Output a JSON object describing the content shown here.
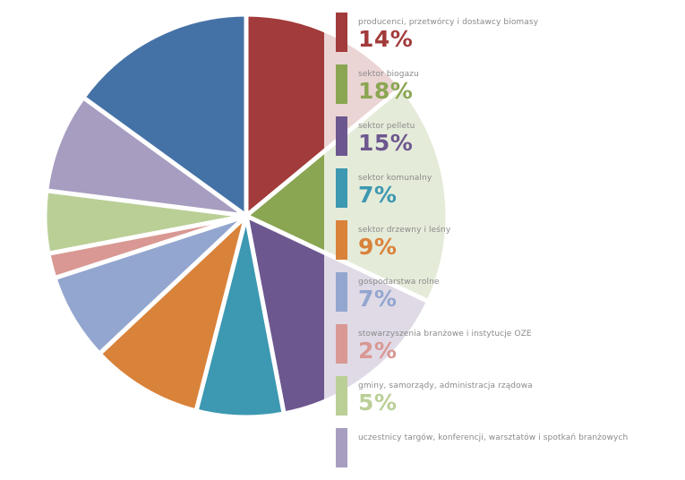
{
  "chart_data": {
    "type": "pie",
    "title": "",
    "slices": [
      {
        "label": "producenci, przetwórcy i dostawcy biomasy",
        "pct_label": "14%",
        "value": 14,
        "color": "#a23b3b",
        "legend_color": "#a23b3b"
      },
      {
        "label": "sektor biogazu",
        "pct_label": "18%",
        "value": 18,
        "color": "#8aa652",
        "legend_color": "#8aa652"
      },
      {
        "label": "sektor pelletu",
        "pct_label": "15%",
        "value": 15,
        "color": "#6d578f",
        "legend_color": "#6d578f"
      },
      {
        "label": "sektor komunalny",
        "pct_label": "7%",
        "value": 7,
        "color": "#3d98b1",
        "legend_color": "#3d98b1"
      },
      {
        "label": "sektor drzewny i leśny",
        "pct_label": "9%",
        "value": 9,
        "color": "#d9823a",
        "legend_color": "#d9823a"
      },
      {
        "label": "gospodarstwa rolne",
        "pct_label": "7%",
        "value": 7,
        "color": "#93a6cf",
        "legend_color": "#93a6cf"
      },
      {
        "label": "stowarzyszenia branżowe i instytucje OZE",
        "pct_label": "2%",
        "value": 2,
        "color": "#d99893",
        "legend_color": "#d99893"
      },
      {
        "label": "gminy, samorządy, administracja rządowa",
        "pct_label": "5%",
        "value": 5,
        "color": "#bacf96",
        "legend_color": "#bacf96"
      },
      {
        "label": "uczestnicy targów, konferencji, warsztatów i spotkań branżowych",
        "pct_label": "",
        "value": 8,
        "color": "#a79dc0",
        "legend_color": "#a79dc0"
      },
      {
        "label": "",
        "pct_label": "",
        "value": 15,
        "color": "#4572a6",
        "legend_color": ""
      }
    ]
  }
}
